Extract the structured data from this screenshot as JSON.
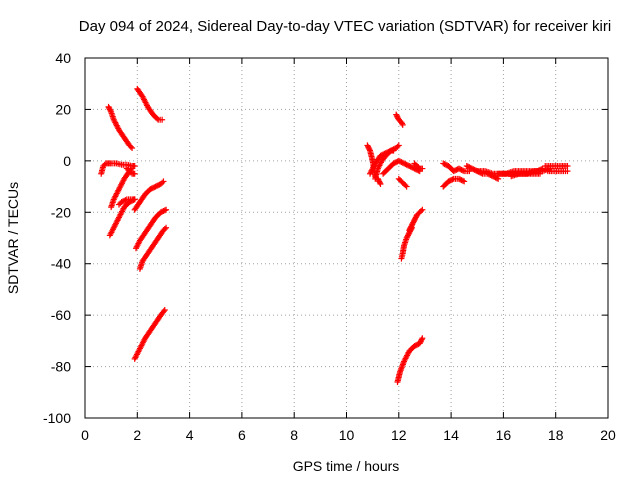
{
  "chart_data": {
    "type": "scatter",
    "title": "Day 094 of 2024, Sidereal Day-to-day VTEC variation (SDTVAR) for receiver kiri",
    "xlabel": "GPS time / hours",
    "ylabel": "SDTVAR / TECUs",
    "xlim": [
      0,
      20
    ],
    "ylim": [
      -100,
      40
    ],
    "x_ticks": [
      "0",
      "2",
      "4",
      "6",
      "8",
      "10",
      "12",
      "14",
      "16",
      "18",
      "20"
    ],
    "y_ticks": [
      "-100",
      "-80",
      "-60",
      "-40",
      "-20",
      "0",
      "20",
      "40"
    ],
    "grid": true,
    "marker": "+",
    "marker_color": "#ff0000",
    "tracks": [
      {
        "x": [
          0.62,
          0.7,
          0.8,
          0.9,
          1.0,
          1.2,
          1.4,
          1.6,
          1.8,
          1.9
        ],
        "y": [
          -5,
          -2,
          -1,
          -1,
          -1,
          -1,
          -1.5,
          -1.5,
          -2,
          -2
        ]
      },
      {
        "x": [
          0.9,
          1.0,
          1.1,
          1.3,
          1.5,
          1.7,
          1.8
        ],
        "y": [
          21,
          19,
          16,
          12,
          9,
          6,
          5
        ]
      },
      {
        "x": [
          1.0,
          1.1,
          1.3,
          1.5,
          1.7,
          1.8
        ],
        "y": [
          -18,
          -15,
          -11,
          -7,
          -4,
          -3
        ]
      },
      {
        "x": [
          0.95,
          1.1,
          1.3,
          1.5,
          1.7,
          1.9
        ],
        "y": [
          -29,
          -26,
          -22,
          -18,
          -16,
          -15
        ]
      },
      {
        "x": [
          1.3,
          1.4,
          1.6,
          1.8,
          1.9
        ],
        "y": [
          -17,
          -16,
          -15,
          -15,
          -15
        ]
      },
      {
        "x": [
          1.6,
          1.7,
          1.8,
          1.9
        ],
        "y": [
          -3,
          -4,
          -5,
          -5
        ]
      },
      {
        "x": [
          2.0,
          2.2,
          2.4,
          2.6,
          2.8,
          2.95
        ],
        "y": [
          28,
          25,
          21,
          18,
          16,
          16
        ]
      },
      {
        "x": [
          1.9,
          2.1,
          2.3,
          2.5,
          2.7,
          2.9,
          3.0
        ],
        "y": [
          -19,
          -16,
          -13,
          -11,
          -10,
          -9,
          -8
        ]
      },
      {
        "x": [
          1.95,
          2.1,
          2.3,
          2.5,
          2.7,
          2.9,
          3.1
        ],
        "y": [
          -34,
          -31,
          -28,
          -25,
          -22,
          -20,
          -19
        ]
      },
      {
        "x": [
          2.1,
          2.2,
          2.4,
          2.6,
          2.8,
          3.0,
          3.1
        ],
        "y": [
          -42,
          -39,
          -36,
          -33,
          -30,
          -27,
          -26
        ]
      },
      {
        "x": [
          1.9,
          2.1,
          2.3,
          2.5,
          2.7,
          2.9,
          3.05
        ],
        "y": [
          -77,
          -73,
          -69,
          -66,
          -63,
          -60,
          -58
        ]
      },
      {
        "x": [
          10.8,
          10.9,
          11.0,
          11.05,
          11.1
        ],
        "y": [
          6,
          4,
          0,
          -3,
          -6
        ]
      },
      {
        "x": [
          10.9,
          11.1,
          11.3,
          11.5,
          11.7,
          11.9,
          12.0
        ],
        "y": [
          -5,
          -1,
          2,
          3,
          4,
          5,
          6
        ]
      },
      {
        "x": [
          11.1,
          11.2,
          11.35,
          11.5,
          11.7,
          11.8
        ],
        "y": [
          -7,
          -3,
          0,
          2,
          4,
          4
        ]
      },
      {
        "x": [
          11.2,
          11.25,
          11.3
        ],
        "y": [
          -7,
          -8,
          -9
        ]
      },
      {
        "x": [
          11.9,
          12.0,
          12.1,
          12.15
        ],
        "y": [
          18,
          16,
          15,
          14
        ]
      },
      {
        "x": [
          11.4,
          11.6,
          11.8,
          12.0,
          12.2,
          12.4,
          12.6,
          12.8
        ],
        "y": [
          -5,
          -3,
          -1,
          0,
          -1,
          -2,
          -3,
          -4
        ]
      },
      {
        "x": [
          12.0,
          12.1,
          12.2,
          12.3
        ],
        "y": [
          -7,
          -8,
          -9,
          -10
        ]
      },
      {
        "x": [
          12.1,
          12.15,
          12.2,
          12.3,
          12.4,
          12.5
        ],
        "y": [
          -38,
          -36,
          -33,
          -30,
          -28,
          -26
        ]
      },
      {
        "x": [
          12.4,
          12.5,
          12.6,
          12.7,
          12.8,
          12.9
        ],
        "y": [
          -27,
          -25,
          -23,
          -21,
          -20,
          -19
        ]
      },
      {
        "x": [
          11.95,
          12.05,
          12.2,
          12.4,
          12.6,
          12.8,
          12.9
        ],
        "y": [
          -86,
          -82,
          -78,
          -74,
          -72,
          -71,
          -69
        ]
      },
      {
        "x": [
          12.6,
          12.7,
          12.8,
          12.9
        ],
        "y": [
          -1,
          -2,
          -3,
          -3
        ]
      },
      {
        "x": [
          13.7,
          13.9,
          14.1,
          14.3,
          14.5,
          14.7
        ],
        "y": [
          -1,
          -2,
          -4,
          -3,
          -4,
          -4
        ]
      },
      {
        "x": [
          13.7,
          13.9,
          14.1,
          14.3,
          14.5
        ],
        "y": [
          -10,
          -8,
          -7,
          -7,
          -8
        ]
      },
      {
        "x": [
          14.6,
          14.8,
          15.0,
          15.2,
          15.4,
          15.6,
          15.8
        ],
        "y": [
          -2,
          -3,
          -4,
          -5,
          -5,
          -6,
          -7
        ]
      },
      {
        "x": [
          15.0,
          15.3,
          15.6,
          15.9,
          16.2,
          16.5,
          16.8,
          17.1,
          17.4
        ],
        "y": [
          -4,
          -4,
          -5,
          -5,
          -5,
          -5,
          -5,
          -5,
          -5
        ]
      },
      {
        "x": [
          15.8,
          16.1,
          16.4,
          16.7,
          17.0,
          17.3,
          17.5
        ],
        "y": [
          -5,
          -5,
          -4,
          -4,
          -4,
          -4,
          -3
        ]
      },
      {
        "x": [
          16.3,
          16.6,
          16.9,
          17.2,
          17.5,
          17.8
        ],
        "y": [
          -6,
          -5,
          -5,
          -4,
          -4,
          -3
        ]
      },
      {
        "x": [
          17.6,
          17.8,
          18.0,
          18.2,
          18.45
        ],
        "y": [
          -2,
          -2,
          -2,
          -2,
          -2
        ]
      },
      {
        "x": [
          17.7,
          17.9,
          18.1,
          18.3,
          18.45
        ],
        "y": [
          -4,
          -4,
          -4,
          -4,
          -4
        ]
      }
    ]
  }
}
